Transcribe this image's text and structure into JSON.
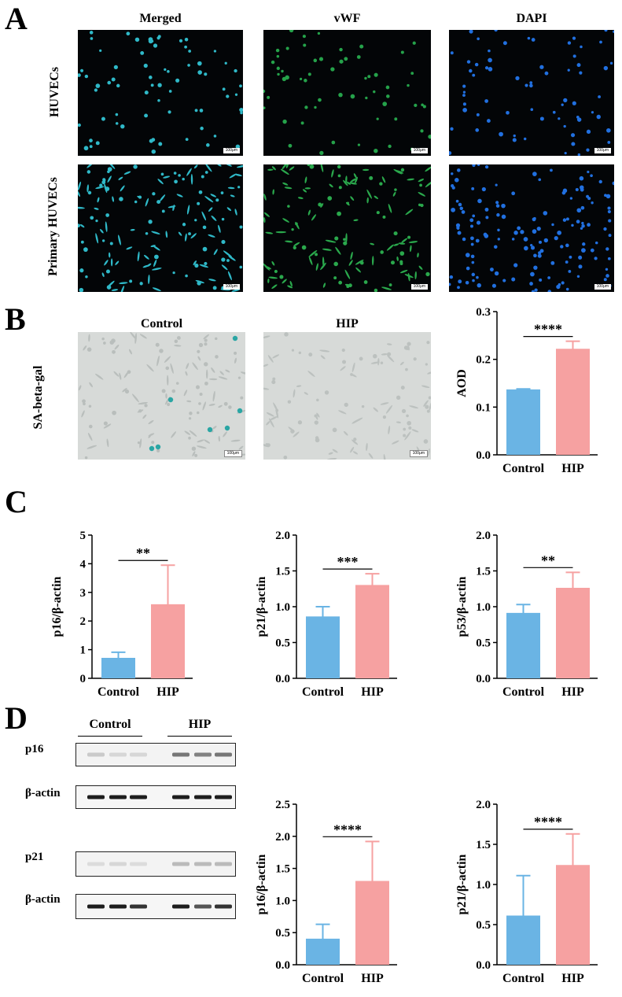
{
  "panels": {
    "A": "A",
    "B": "B",
    "C": "C",
    "D": "D"
  },
  "panel_a": {
    "columns": [
      "Merged",
      "vWF",
      "DAPI"
    ],
    "rows": [
      "HUVECs",
      "Primary HUVECs"
    ],
    "scale_label": "100μm"
  },
  "panel_b": {
    "row_label": "SA-beta-gal",
    "columns": [
      "Control",
      "HIP"
    ],
    "scale_label": "100μm"
  },
  "panel_d_blot": {
    "groups": [
      "Control",
      "HIP"
    ],
    "bands": [
      "p16",
      "β-actin",
      "p21",
      "β-actin"
    ]
  },
  "colors": {
    "control": "#6ab4e4",
    "hip": "#f6a1a1",
    "axis": "#000000"
  },
  "chart_data": [
    {
      "id": "B-aod",
      "type": "bar",
      "categories": [
        "Control",
        "HIP"
      ],
      "values": [
        0.135,
        0.22
      ],
      "errors": [
        0.003,
        0.018
      ],
      "ylabel": "AOD",
      "ylim": [
        0,
        0.3
      ],
      "yticks": [
        "0.0",
        "0.1",
        "0.2",
        "0.3"
      ],
      "significance": "****"
    },
    {
      "id": "C-p16",
      "type": "bar",
      "categories": [
        "Control",
        "HIP"
      ],
      "values": [
        0.68,
        2.55
      ],
      "errors": [
        0.23,
        1.4
      ],
      "ylabel": "p16/β-actin",
      "ylim": [
        0,
        5
      ],
      "yticks": [
        "0",
        "1",
        "2",
        "3",
        "4",
        "5"
      ],
      "significance": "**"
    },
    {
      "id": "C-p21",
      "type": "bar",
      "categories": [
        "Control",
        "HIP"
      ],
      "values": [
        0.85,
        1.29
      ],
      "errors": [
        0.15,
        0.17
      ],
      "ylabel": "p21/β-actin",
      "ylim": [
        0,
        2
      ],
      "yticks": [
        "0.0",
        "0.5",
        "1.0",
        "1.5",
        "2.0"
      ],
      "significance": "***"
    },
    {
      "id": "C-p53",
      "type": "bar",
      "categories": [
        "Control",
        "HIP"
      ],
      "values": [
        0.9,
        1.25
      ],
      "errors": [
        0.13,
        0.23
      ],
      "ylabel": "p53/β-actin",
      "ylim": [
        0,
        2
      ],
      "yticks": [
        "0.0",
        "0.5",
        "1.0",
        "1.5",
        "2.0"
      ],
      "significance": "**"
    },
    {
      "id": "D-p16",
      "type": "bar",
      "categories": [
        "Control",
        "HIP"
      ],
      "values": [
        0.39,
        1.29
      ],
      "errors": [
        0.24,
        0.63
      ],
      "ylabel": "p16/β-actin",
      "ylim": [
        0,
        2.5
      ],
      "yticks": [
        "0.0",
        "0.5",
        "1.0",
        "1.5",
        "2.0",
        "2.5"
      ],
      "significance": "****"
    },
    {
      "id": "D-p21",
      "type": "bar",
      "categories": [
        "Control",
        "HIP"
      ],
      "values": [
        0.6,
        1.23
      ],
      "errors": [
        0.51,
        0.4
      ],
      "ylabel": "p21/β-actin",
      "ylim": [
        0,
        2
      ],
      "yticks": [
        "0.0",
        "0.5",
        "1.0",
        "1.5",
        "2.0"
      ],
      "significance": "****"
    }
  ]
}
